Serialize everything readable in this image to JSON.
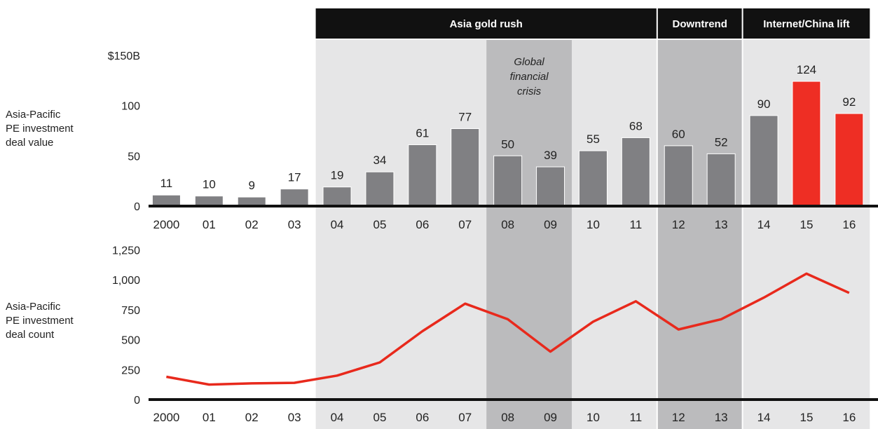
{
  "colors": {
    "bar_default": "#808083",
    "bar_highlight": "#ee2e24",
    "line": "#e8291c",
    "band_light": "#e6e6e7",
    "band_dark": "#bbbbbd",
    "header": "#111111",
    "axis": "#111111"
  },
  "phases": [
    {
      "label": "Asia gold rush",
      "start": "04",
      "end": "11"
    },
    {
      "label": "Downtrend",
      "start": "12",
      "end": "13"
    },
    {
      "label": "Internet/China lift",
      "start": "14",
      "end": "16"
    }
  ],
  "crisis": {
    "lines": [
      "Global",
      "financial",
      "crisis"
    ],
    "start": "08",
    "end": "09"
  },
  "chart_data": [
    {
      "type": "bar",
      "ylabel": [
        "Asia-Pacific",
        "PE investment",
        "deal value"
      ],
      "ytick_labels": [
        "0",
        "50",
        "100",
        "$150B"
      ],
      "ylim": [
        0,
        150
      ],
      "categories": [
        "2000",
        "01",
        "02",
        "03",
        "04",
        "05",
        "06",
        "07",
        "08",
        "09",
        "10",
        "11",
        "12",
        "13",
        "14",
        "15",
        "16"
      ],
      "values": [
        11,
        10,
        9,
        17,
        19,
        34,
        61,
        77,
        50,
        39,
        55,
        68,
        60,
        52,
        90,
        124,
        92
      ],
      "highlighted": [
        "15",
        "16"
      ]
    },
    {
      "type": "line",
      "ylabel": [
        "Asia-Pacific",
        "PE investment",
        "deal count"
      ],
      "ytick_labels": [
        "0",
        "250",
        "500",
        "750",
        "1,000",
        "1,250"
      ],
      "ylim": [
        0,
        1250
      ],
      "categories": [
        "2000",
        "01",
        "02",
        "03",
        "04",
        "05",
        "06",
        "07",
        "08",
        "09",
        "10",
        "11",
        "12",
        "13",
        "14",
        "15",
        "16"
      ],
      "values": [
        190,
        125,
        135,
        140,
        200,
        310,
        570,
        800,
        670,
        400,
        650,
        820,
        585,
        670,
        850,
        1050,
        890
      ]
    }
  ]
}
